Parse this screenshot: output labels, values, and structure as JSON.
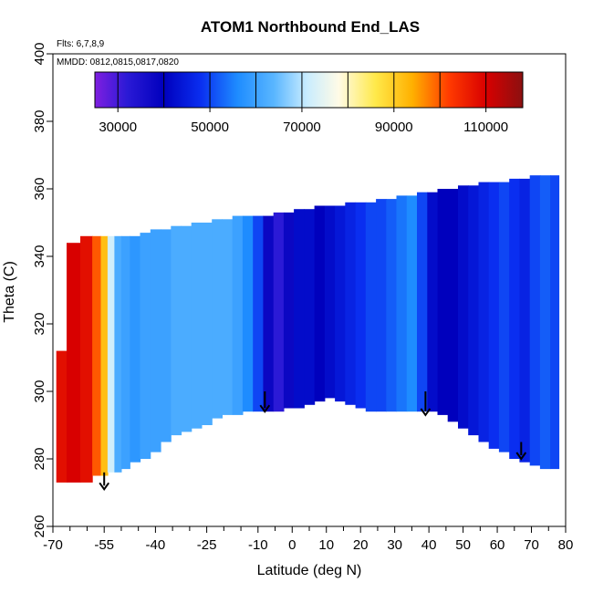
{
  "chart_data": {
    "type": "heatmap",
    "title": "ATOM1 Northbound End_LAS",
    "flights_text": "Flts: 6,7,8,9",
    "mmdd_text": "MMDD: 0812,0815,0817,0820",
    "xlabel": "Latitude (deg N)",
    "ylabel": "Theta (C)",
    "xlim": [
      -70,
      80
    ],
    "ylim": [
      260,
      400
    ],
    "x_ticks": [
      -70,
      -55,
      -40,
      -25,
      -10,
      0,
      10,
      20,
      30,
      40,
      50,
      60,
      70,
      80
    ],
    "x_minor_ticks": [
      -65,
      -60,
      -50,
      -45,
      -35,
      -30,
      -20,
      -15,
      -5,
      5,
      15,
      25,
      35,
      45,
      55,
      65,
      75
    ],
    "y_ticks": [
      260,
      280,
      300,
      320,
      340,
      360,
      380,
      400
    ],
    "colorbar": {
      "range": [
        25000,
        118000
      ],
      "tick_values": [
        30000,
        50000,
        70000,
        90000,
        110000
      ],
      "tick_labels": [
        "30000",
        "50000",
        "70000",
        "90000",
        "110000"
      ],
      "divisions": [
        30000,
        40000,
        50000,
        60000,
        70000,
        80000,
        90000,
        100000,
        110000
      ],
      "color_stops": [
        {
          "value": 25000,
          "color": "#7f1fe0"
        },
        {
          "value": 32000,
          "color": "#2b1ad6"
        },
        {
          "value": 40000,
          "color": "#0000bd"
        },
        {
          "value": 48000,
          "color": "#0a2ef0"
        },
        {
          "value": 56000,
          "color": "#1e8cff"
        },
        {
          "value": 64000,
          "color": "#5ab6ff"
        },
        {
          "value": 71000,
          "color": "#c8ecff"
        },
        {
          "value": 78000,
          "color": "#fffbe6"
        },
        {
          "value": 86000,
          "color": "#ffe94a"
        },
        {
          "value": 94000,
          "color": "#ffb000"
        },
        {
          "value": 102000,
          "color": "#ff3a00"
        },
        {
          "value": 110000,
          "color": "#d80000"
        },
        {
          "value": 118000,
          "color": "#8b1010"
        }
      ]
    },
    "field_columns": [
      {
        "x": -68,
        "ymin": 273,
        "ymax": 312,
        "value": 108000
      },
      {
        "x": -64,
        "ymin": 273,
        "ymax": 344,
        "value": 110000
      },
      {
        "x": -60,
        "ymin": 273,
        "ymax": 346,
        "value": 108000
      },
      {
        "x": -57,
        "ymin": 275,
        "ymax": 346,
        "value": 100000
      },
      {
        "x": -55,
        "ymin": 275,
        "ymax": 346,
        "value": 92000
      },
      {
        "x": -53,
        "ymin": 276,
        "ymax": 346,
        "value": 72000
      },
      {
        "x": -51,
        "ymin": 276,
        "ymax": 346,
        "value": 62000
      },
      {
        "x": -49,
        "ymin": 277,
        "ymax": 346,
        "value": 60000
      },
      {
        "x": -46,
        "ymin": 279,
        "ymax": 346,
        "value": 58000
      },
      {
        "x": -43,
        "ymin": 280,
        "ymax": 347,
        "value": 60000
      },
      {
        "x": -40,
        "ymin": 282,
        "ymax": 348,
        "value": 60000
      },
      {
        "x": -37,
        "ymin": 285,
        "ymax": 348,
        "value": 60000
      },
      {
        "x": -34,
        "ymin": 287,
        "ymax": 349,
        "value": 62000
      },
      {
        "x": -31,
        "ymin": 288,
        "ymax": 349,
        "value": 62000
      },
      {
        "x": -28,
        "ymin": 289,
        "ymax": 350,
        "value": 62000
      },
      {
        "x": -25,
        "ymin": 290,
        "ymax": 350,
        "value": 62000
      },
      {
        "x": -22,
        "ymin": 292,
        "ymax": 351,
        "value": 62000
      },
      {
        "x": -19,
        "ymin": 293,
        "ymax": 351,
        "value": 62000
      },
      {
        "x": -16,
        "ymin": 293,
        "ymax": 352,
        "value": 60000
      },
      {
        "x": -13,
        "ymin": 294,
        "ymax": 352,
        "value": 56000
      },
      {
        "x": -10,
        "ymin": 294,
        "ymax": 352,
        "value": 50000
      },
      {
        "x": -7,
        "ymin": 294,
        "ymax": 352,
        "value": 38000
      },
      {
        "x": -4,
        "ymin": 294,
        "ymax": 353,
        "value": 32000
      },
      {
        "x": -1,
        "ymin": 295,
        "ymax": 353,
        "value": 38000
      },
      {
        "x": 2,
        "ymin": 295,
        "ymax": 354,
        "value": 42000
      },
      {
        "x": 5,
        "ymin": 296,
        "ymax": 354,
        "value": 42000
      },
      {
        "x": 8,
        "ymin": 297,
        "ymax": 355,
        "value": 40000
      },
      {
        "x": 11,
        "ymin": 298,
        "ymax": 355,
        "value": 42000
      },
      {
        "x": 14,
        "ymin": 297,
        "ymax": 355,
        "value": 44000
      },
      {
        "x": 17,
        "ymin": 296,
        "ymax": 356,
        "value": 46000
      },
      {
        "x": 20,
        "ymin": 295,
        "ymax": 356,
        "value": 48000
      },
      {
        "x": 23,
        "ymin": 294,
        "ymax": 356,
        "value": 50000
      },
      {
        "x": 26,
        "ymin": 294,
        "ymax": 357,
        "value": 50000
      },
      {
        "x": 29,
        "ymin": 294,
        "ymax": 357,
        "value": 52000
      },
      {
        "x": 32,
        "ymin": 294,
        "ymax": 358,
        "value": 54000
      },
      {
        "x": 35,
        "ymin": 294,
        "ymax": 358,
        "value": 56000
      },
      {
        "x": 38,
        "ymin": 294,
        "ymax": 359,
        "value": 50000
      },
      {
        "x": 41,
        "ymin": 294,
        "ymax": 359,
        "value": 42000
      },
      {
        "x": 44,
        "ymin": 293,
        "ymax": 360,
        "value": 40000
      },
      {
        "x": 47,
        "ymin": 291,
        "ymax": 360,
        "value": 40000
      },
      {
        "x": 50,
        "ymin": 289,
        "ymax": 361,
        "value": 42000
      },
      {
        "x": 53,
        "ymin": 287,
        "ymax": 361,
        "value": 44000
      },
      {
        "x": 56,
        "ymin": 285,
        "ymax": 362,
        "value": 46000
      },
      {
        "x": 59,
        "ymin": 283,
        "ymax": 362,
        "value": 48000
      },
      {
        "x": 62,
        "ymin": 282,
        "ymax": 362,
        "value": 50000
      },
      {
        "x": 65,
        "ymin": 280,
        "ymax": 363,
        "value": 48000
      },
      {
        "x": 68,
        "ymin": 279,
        "ymax": 363,
        "value": 46000
      },
      {
        "x": 71,
        "ymin": 278,
        "ymax": 364,
        "value": 50000
      },
      {
        "x": 74,
        "ymin": 277,
        "ymax": 364,
        "value": 52000
      },
      {
        "x": 77,
        "ymin": 277,
        "ymax": 364,
        "value": 50000
      }
    ],
    "arrows": [
      {
        "x": -55,
        "y_top": 276,
        "y_tip": 271
      },
      {
        "x": -8,
        "y_top": 300,
        "y_tip": 294
      },
      {
        "x": 39,
        "y_top": 300,
        "y_tip": 293
      },
      {
        "x": 67,
        "y_top": 285,
        "y_tip": 280
      }
    ],
    "legend_position": "top",
    "grid": false
  }
}
